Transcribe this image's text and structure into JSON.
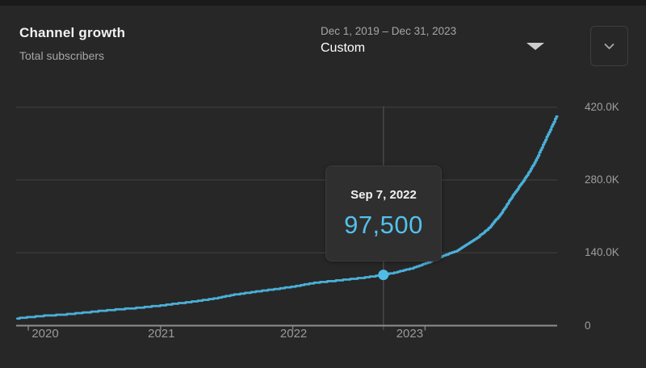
{
  "header": {
    "title": "Channel growth",
    "subtitle": "Total subscribers",
    "date_range_picker": {
      "range": "Dec 1, 2019 – Dec 31, 2023",
      "selected_option": "Custom",
      "caret_icon": "triangle-down"
    },
    "collapse_button_icon": "chevron-down"
  },
  "tooltip": {
    "date": "Sep 7, 2022",
    "value": "97,500"
  },
  "chart_data": {
    "type": "line",
    "title": "Channel growth",
    "series": [
      {
        "name": "Total subscribers",
        "points": [
          [
            2019.917,
            14000
          ],
          [
            2020.1,
            18500
          ],
          [
            2020.28,
            21500
          ],
          [
            2020.46,
            26000
          ],
          [
            2020.64,
            30500
          ],
          [
            2020.82,
            34000
          ],
          [
            2021.0,
            38500
          ],
          [
            2021.19,
            44500
          ],
          [
            2021.37,
            50500
          ],
          [
            2021.56,
            59500
          ],
          [
            2021.74,
            66000
          ],
          [
            2021.92,
            72000
          ],
          [
            2022.0,
            75000
          ],
          [
            2022.17,
            82500
          ],
          [
            2022.35,
            87000
          ],
          [
            2022.53,
            92000
          ],
          [
            2022.685,
            97500
          ],
          [
            2022.78,
            102500
          ],
          [
            2022.9,
            110000
          ],
          [
            2023.02,
            121000
          ],
          [
            2023.14,
            134500
          ],
          [
            2023.24,
            144000
          ],
          [
            2023.39,
            168000
          ],
          [
            2023.48,
            187000
          ],
          [
            2023.57,
            214000
          ],
          [
            2023.66,
            249000
          ],
          [
            2023.76,
            285000
          ],
          [
            2023.83,
            314000
          ],
          [
            2023.89,
            347000
          ],
          [
            2023.95,
            379000
          ],
          [
            2024.0,
            406000
          ]
        ]
      }
    ],
    "x_axis": {
      "unit": "year",
      "range": [
        2019.917,
        2024.0
      ],
      "ticks": [
        {
          "value": 2020,
          "label": "2020"
        },
        {
          "value": 2021,
          "label": "2021"
        },
        {
          "value": 2022,
          "label": "2022"
        },
        {
          "value": 2023,
          "label": "2023"
        }
      ]
    },
    "y_axis": {
      "unit": "subscribers",
      "range": [
        0,
        434000
      ],
      "ticks": [
        {
          "value": 420000,
          "label": "420.0K"
        },
        {
          "value": 280000,
          "label": "280.0K"
        },
        {
          "value": 140000,
          "label": "140.0K"
        },
        {
          "value": 0,
          "label": "0"
        }
      ]
    },
    "highlight_point": {
      "x": 2022.685,
      "value": 97500,
      "date_label": "Sep 7, 2022",
      "value_label": "97,500"
    },
    "value_step": 1500,
    "grid": true,
    "legend_position": "none",
    "line_color": "#4ab0d9",
    "dot_color": "#4fbce6"
  },
  "colors": {
    "background": "#272727",
    "card_top_edge": "#1a1a1a",
    "grid_line": "#3a3a3a",
    "axis_line": "#8f8f8f",
    "axis_tick": "#7d7d7d",
    "crosshair": "#474747",
    "text_primary": "#f1f1f1",
    "text_secondary": "#a6a6a6",
    "tooltip_value": "#53c1ec"
  }
}
